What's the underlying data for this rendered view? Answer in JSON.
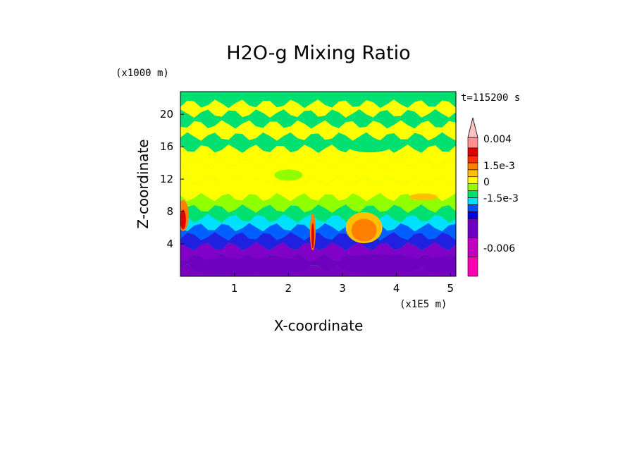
{
  "chart_data": {
    "type": "heatmap",
    "title": "H2O-g Mixing Ratio",
    "xlabel": "X-coordinate",
    "ylabel": "Z-coordinate",
    "x_unit": "(x1E5 m)",
    "y_unit": "(x1000 m)",
    "time_label": "t=115200 s",
    "x_ticks": [
      "1",
      "2",
      "3",
      "4",
      "5"
    ],
    "y_ticks": [
      "4",
      "8",
      "12",
      "16",
      "20"
    ],
    "xlim": [
      0,
      5.1
    ],
    "ylim": [
      0,
      22.8
    ],
    "colorbar_labels": [
      "0.004",
      "1.5e-3",
      "0",
      "-1.5e-3",
      "-0.006"
    ],
    "colorbar_colors": [
      "#ff00b4",
      "#c000c0",
      "#7000c0",
      "#0000e0",
      "#0050ff",
      "#00e0ff",
      "#00e070",
      "#90ff00",
      "#ffff00",
      "#ffc000",
      "#ff8000",
      "#ff3000",
      "#e00000",
      "#ff9090",
      "#ffc0c0"
    ],
    "z_levels": [
      {
        "z": 0.4,
        "color": "#7a00c0"
      },
      {
        "z": 1.6,
        "color": "#7000c0"
      },
      {
        "z": 3.0,
        "color": "#8000c8"
      },
      {
        "z": 4.4,
        "color": "#2020e0"
      },
      {
        "z": 5.5,
        "color": "#0060ff"
      },
      {
        "z": 6.6,
        "color": "#00e0ff"
      },
      {
        "z": 7.7,
        "color": "#00e070"
      },
      {
        "z": 9.0,
        "color": "#90ff00"
      },
      {
        "z": 10.5,
        "color": "#ffff00"
      },
      {
        "z": 13.0,
        "color": "#ffff00"
      },
      {
        "z": 15.0,
        "color": "#ffff00"
      },
      {
        "z": 16.5,
        "color": "#00e070"
      },
      {
        "z": 18.0,
        "color": "#ffff00"
      },
      {
        "z": 19.5,
        "color": "#00e070"
      },
      {
        "z": 20.7,
        "color": "#ffff00"
      },
      {
        "z": 21.9,
        "color": "#00e070"
      }
    ]
  }
}
